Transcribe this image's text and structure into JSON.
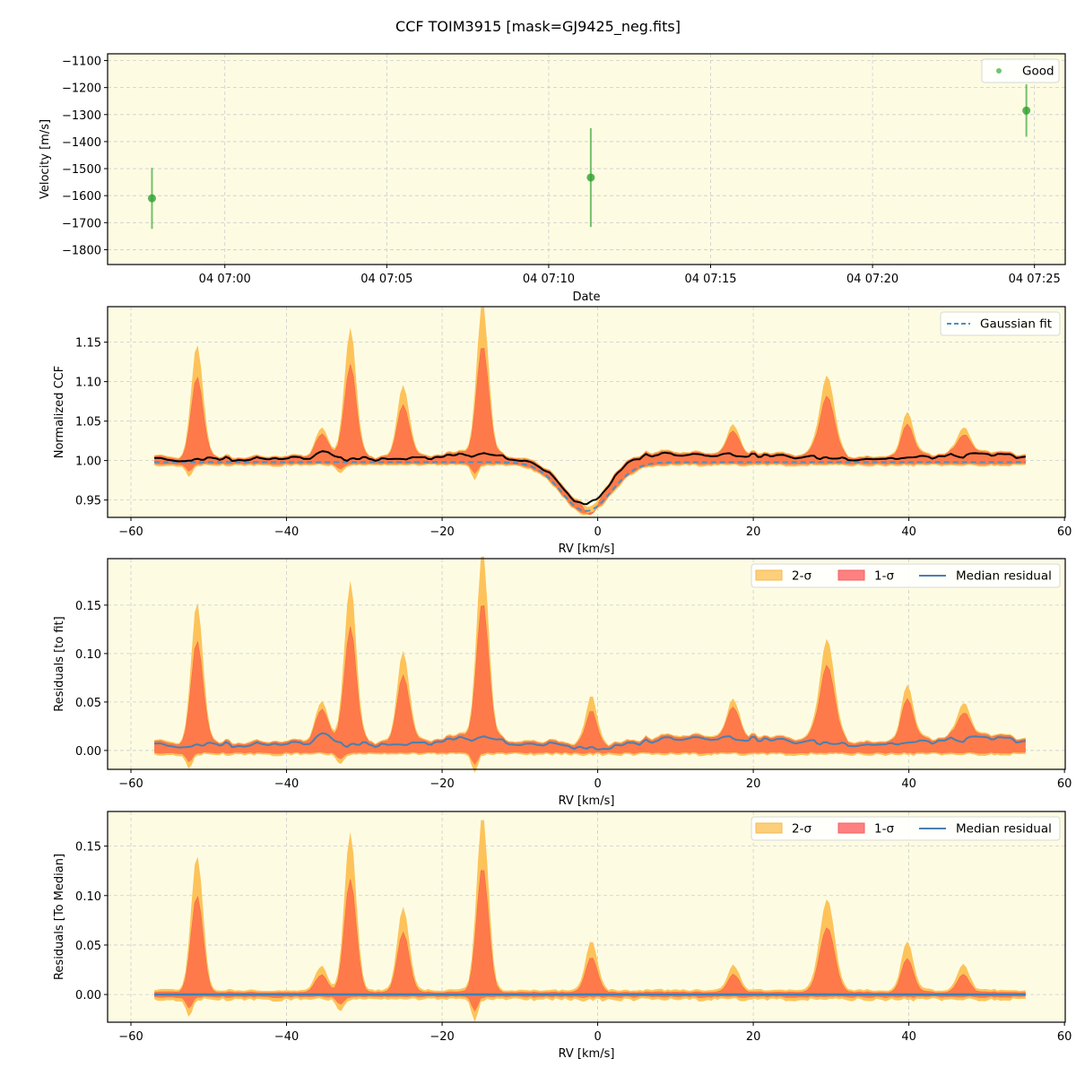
{
  "figure": {
    "title": "CCF TOIM3915 [mask=GJ9425_neg.fits]",
    "background": "#ffffff",
    "axes_facecolor": "#fdfce3",
    "grid_color": "#cccccc"
  },
  "chart_data": [
    {
      "type": "scatter",
      "panel": "velocity",
      "title": "",
      "xlabel": "Date",
      "ylabel": "Velocity [m/s]",
      "x_ticks": [
        "04 07:00",
        "04 07:05",
        "04 07:10",
        "04 07:15",
        "04 07:20",
        "04 07:25"
      ],
      "x_tick_minutes": [
        0,
        5,
        10,
        15,
        20,
        25
      ],
      "xlim_minutes": [
        -3.62,
        25.95
      ],
      "y_ticks": [
        -1100,
        -1200,
        -1300,
        -1400,
        -1500,
        -1600,
        -1700,
        -1800
      ],
      "ylim": [
        -1855,
        -1075
      ],
      "grid": true,
      "legend": {
        "position": "upper right",
        "entries": [
          {
            "label": "Good",
            "color": "#2ca02c",
            "marker": "dot"
          }
        ]
      },
      "points": [
        {
          "minute": -2.25,
          "value": -1610,
          "err": 113
        },
        {
          "minute": 11.3,
          "value": -1533,
          "err": 183
        },
        {
          "minute": 24.75,
          "value": -1285,
          "err": 97
        }
      ],
      "color": "#2ca02c"
    },
    {
      "type": "area",
      "panel": "ccf",
      "xlabel": "RV [km/s]",
      "ylabel": "Normalized CCF",
      "x_ticks": [
        -60,
        -40,
        -20,
        0,
        20,
        40,
        60
      ],
      "y_ticks": [
        0.95,
        1.0,
        1.05,
        1.1,
        1.15
      ],
      "xlim": [
        -63.0,
        60.1
      ],
      "ylim": [
        0.928,
        1.195
      ],
      "grid": true,
      "legend": {
        "position": "upper right",
        "entries": [
          {
            "label": "Gaussian fit",
            "color": "#4a90c4",
            "style": "dashed"
          }
        ]
      },
      "gaussian_fit": {
        "center": -1.5,
        "depth": 0.062,
        "sigma": 3.2,
        "baseline": 0.998,
        "xrange": [
          -57,
          55
        ]
      },
      "peaks": [
        {
          "rv": -51.5,
          "two_sigma": 1.142,
          "one_sigma": 1.102
        },
        {
          "rv": -31.8,
          "two_sigma": 1.162,
          "one_sigma": 1.117
        },
        {
          "rv": -25.0,
          "two_sigma": 1.091,
          "one_sigma": 1.067
        },
        {
          "rv": -14.8,
          "two_sigma": 1.187,
          "one_sigma": 1.135
        },
        {
          "rv": -35.5,
          "two_sigma": 1.027,
          "one_sigma": 1.02
        },
        {
          "rv": -0.8,
          "two_sigma": 0.989,
          "one_sigma": 0.98
        },
        {
          "rv": 17.5,
          "two_sigma": 1.035,
          "one_sigma": 1.028
        },
        {
          "rv": 29.5,
          "two_sigma": 1.101,
          "one_sigma": 1.076
        },
        {
          "rv": 39.8,
          "two_sigma": 1.054,
          "one_sigma": 1.04
        },
        {
          "rv": 47.0,
          "two_sigma": 1.034,
          "one_sigma": 1.026
        }
      ],
      "series": [
        {
          "name": "2-σ",
          "color": "#fdc35a"
        },
        {
          "name": "1-σ",
          "color": "#ff5a3c"
        },
        {
          "name": "median CCF",
          "color": "#000000"
        },
        {
          "name": "Gaussian fit",
          "color": "#4a90c4"
        }
      ]
    },
    {
      "type": "area",
      "panel": "residuals_fit",
      "xlabel": "RV [km/s]",
      "ylabel": "Residuals [to fit]",
      "x_ticks": [
        -60,
        -40,
        -20,
        0,
        20,
        40,
        60
      ],
      "y_ticks": [
        0.0,
        0.05,
        0.1,
        0.15
      ],
      "xlim": [
        -63.0,
        60.1
      ],
      "ylim": [
        -0.0195,
        0.198
      ],
      "grid": true,
      "legend": {
        "position": "upper right",
        "entries": [
          {
            "label": "2-σ",
            "color": "#fdc35a",
            "style": "patch"
          },
          {
            "label": "1-σ",
            "color": "#ff8080",
            "style": "patch"
          },
          {
            "label": "Median residual",
            "color": "#4a7fb0",
            "style": "line"
          }
        ]
      },
      "peaks": [
        {
          "rv": -51.5,
          "two_sigma": 0.144,
          "one_sigma": 0.105
        },
        {
          "rv": -31.8,
          "two_sigma": 0.165,
          "one_sigma": 0.119
        },
        {
          "rv": -25.0,
          "two_sigma": 0.094,
          "one_sigma": 0.07
        },
        {
          "rv": -14.8,
          "two_sigma": 0.188,
          "one_sigma": 0.137
        },
        {
          "rv": -35.5,
          "two_sigma": 0.03,
          "one_sigma": 0.023
        },
        {
          "rv": -0.8,
          "two_sigma": 0.049,
          "one_sigma": 0.035
        },
        {
          "rv": 17.5,
          "two_sigma": 0.037,
          "one_sigma": 0.03
        },
        {
          "rv": 29.5,
          "two_sigma": 0.104,
          "one_sigma": 0.078
        },
        {
          "rv": 39.8,
          "two_sigma": 0.056,
          "one_sigma": 0.043
        },
        {
          "rv": 47.0,
          "two_sigma": 0.036,
          "one_sigma": 0.027
        }
      ]
    },
    {
      "type": "area",
      "panel": "residuals_median",
      "xlabel": "RV [km/s]",
      "ylabel": "Residuals [To Median]",
      "x_ticks": [
        -60,
        -40,
        -20,
        0,
        20,
        40,
        60
      ],
      "y_ticks": [
        0.0,
        0.05,
        0.1,
        0.15
      ],
      "xlim": [
        -63.0,
        60.1
      ],
      "ylim": [
        -0.028,
        0.185
      ],
      "grid": true,
      "legend": {
        "position": "upper right",
        "entries": [
          {
            "label": "2-σ",
            "color": "#fdc35a",
            "style": "patch"
          },
          {
            "label": "1-σ",
            "color": "#ff8080",
            "style": "patch"
          },
          {
            "label": "Median residual",
            "color": "#4a7fb0",
            "style": "line"
          }
        ]
      },
      "peaks": [
        {
          "rv": -51.5,
          "two_sigma": 0.137,
          "one_sigma": 0.098
        },
        {
          "rv": -31.8,
          "two_sigma": 0.159,
          "one_sigma": 0.114
        },
        {
          "rv": -25.0,
          "two_sigma": 0.085,
          "one_sigma": 0.061
        },
        {
          "rv": -14.8,
          "two_sigma": 0.177,
          "one_sigma": 0.127
        },
        {
          "rv": -35.5,
          "two_sigma": 0.025,
          "one_sigma": 0.018
        },
        {
          "rv": -0.8,
          "two_sigma": 0.049,
          "one_sigma": 0.035
        },
        {
          "rv": 17.5,
          "two_sigma": 0.025,
          "one_sigma": 0.018
        },
        {
          "rv": 29.5,
          "two_sigma": 0.093,
          "one_sigma": 0.066
        },
        {
          "rv": 39.8,
          "two_sigma": 0.049,
          "one_sigma": 0.034
        },
        {
          "rv": 47.0,
          "two_sigma": 0.026,
          "one_sigma": 0.018
        }
      ]
    }
  ]
}
